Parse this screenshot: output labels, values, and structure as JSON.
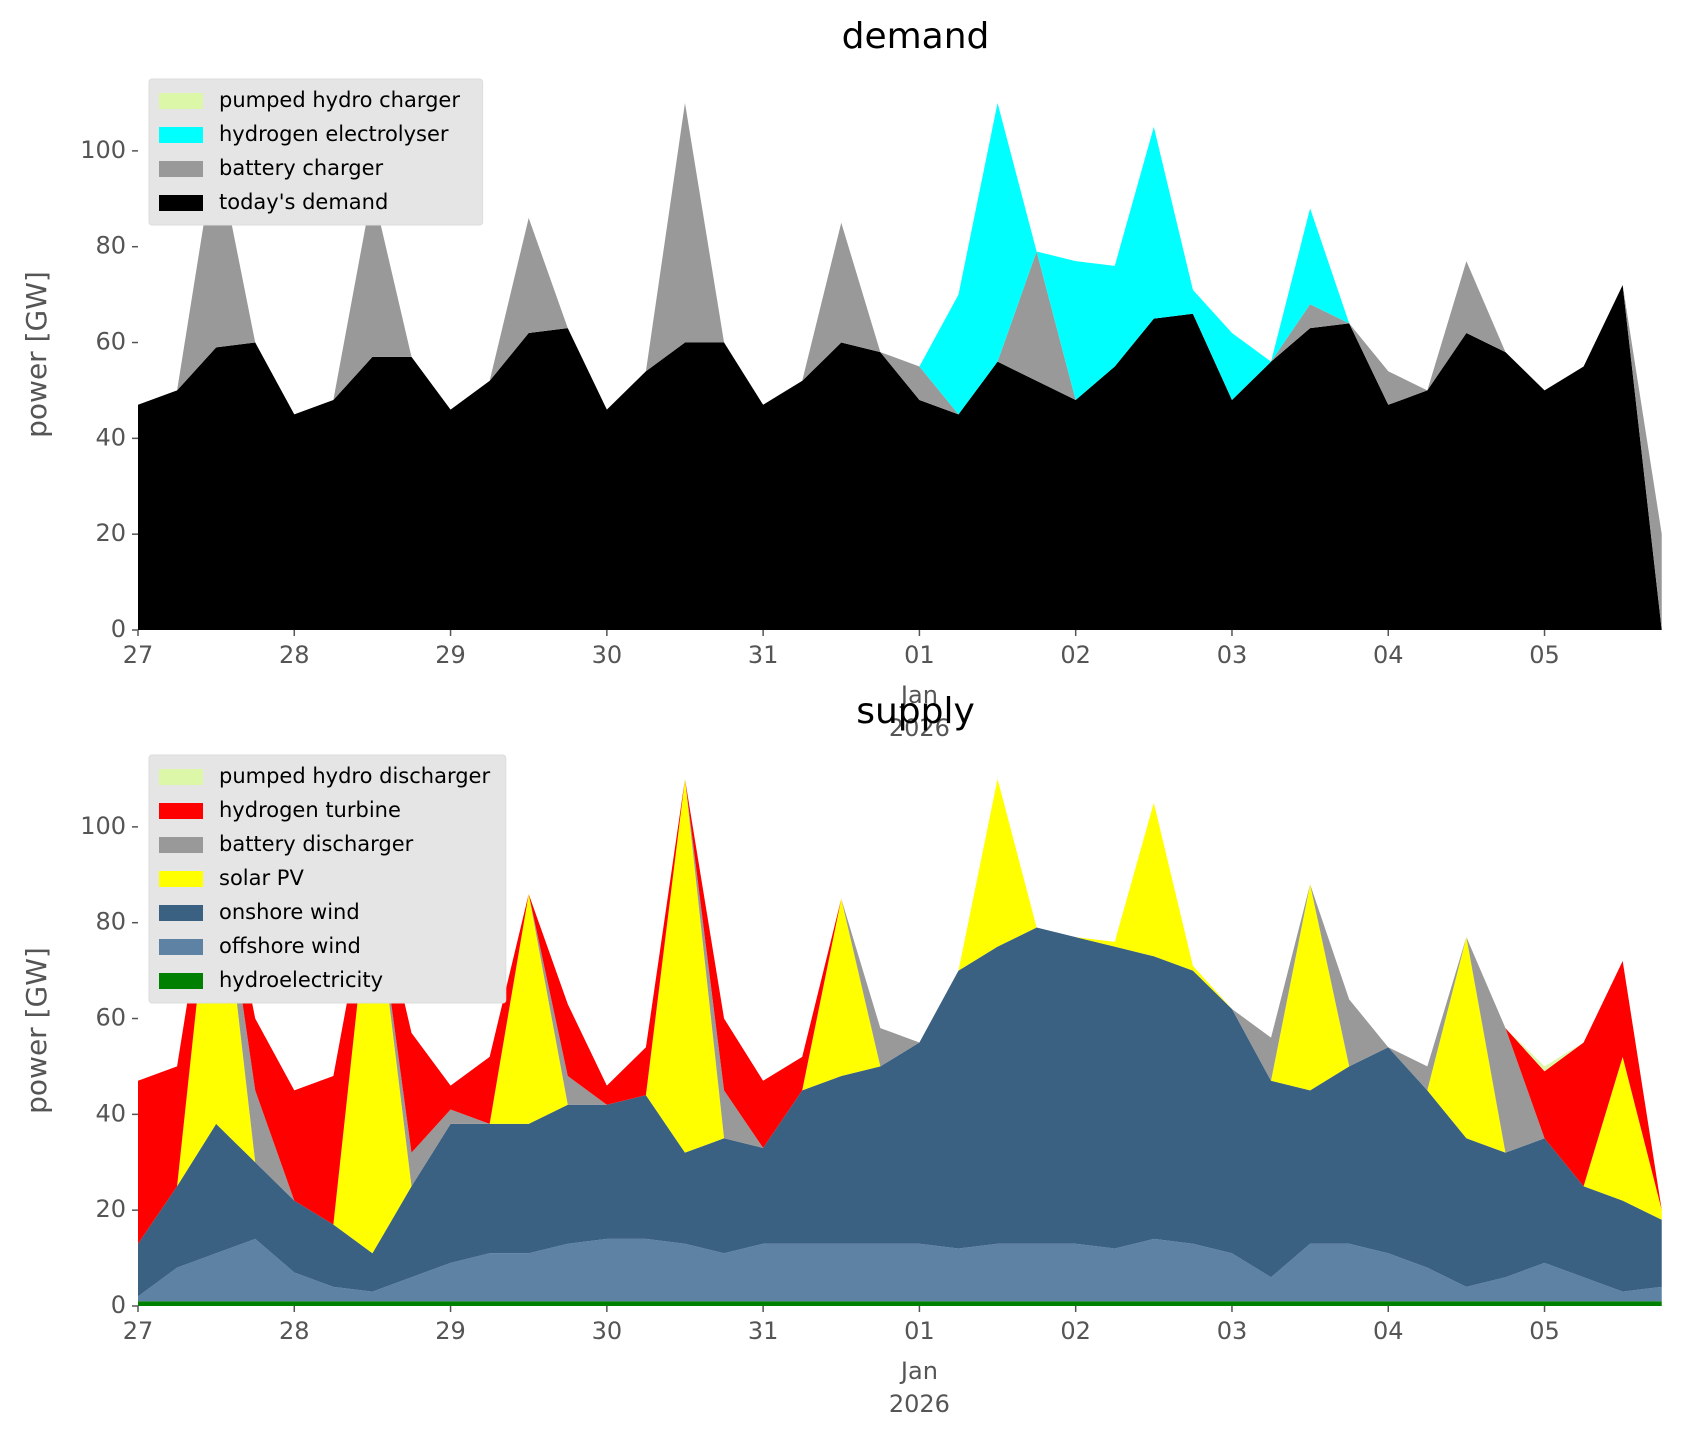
{
  "chart_data": [
    {
      "type": "stacked_area",
      "title": "demand",
      "ylabel": "power [GW]",
      "xlabel_lines": [
        "Jan",
        "2026"
      ],
      "xlim": [
        0,
        9.95
      ],
      "ylim": [
        0,
        115
      ],
      "yticks": [
        0,
        20,
        40,
        60,
        80,
        100
      ],
      "xticks": [
        {
          "value": 0,
          "label": "27"
        },
        {
          "value": 1,
          "label": "28"
        },
        {
          "value": 2,
          "label": "29"
        },
        {
          "value": 3,
          "label": "30"
        },
        {
          "value": 4,
          "label": "31"
        },
        {
          "value": 5,
          "label": "01"
        },
        {
          "value": 6,
          "label": "02"
        },
        {
          "value": 7,
          "label": "03"
        },
        {
          "value": 8,
          "label": "04"
        },
        {
          "value": 9,
          "label": "05"
        }
      ],
      "legend": "upper left",
      "x": [
        0,
        0.25,
        0.5,
        0.75,
        1,
        1.25,
        1.5,
        1.75,
        2,
        2.25,
        2.5,
        2.75,
        3,
        3.25,
        3.5,
        3.75,
        4,
        4.25,
        4.5,
        4.75,
        5,
        5.25,
        5.5,
        5.75,
        6,
        6.25,
        6.5,
        6.75,
        7,
        7.25,
        7.5,
        7.75,
        8,
        8.25,
        8.5,
        8.75,
        9,
        9.25,
        9.5,
        9.75
      ],
      "series": [
        {
          "name": "today's demand",
          "color": "#000000",
          "values": [
            47,
            50,
            59,
            60,
            45,
            48,
            57,
            57,
            46,
            52,
            62,
            63,
            46,
            54,
            60,
            60,
            47,
            52,
            60,
            58,
            48,
            45,
            56,
            52,
            48,
            55,
            65,
            66,
            48,
            56,
            63,
            64,
            47,
            50,
            62,
            58,
            50,
            55,
            72,
            0
          ]
        },
        {
          "name": "battery charger",
          "color": "#999999",
          "values": [
            0,
            0,
            42,
            0,
            0,
            0,
            35,
            0,
            0,
            0,
            24,
            0,
            0,
            0,
            50,
            0,
            0,
            0,
            25,
            0,
            7,
            0,
            0,
            27,
            0,
            0,
            0,
            0,
            0,
            0,
            5,
            0,
            7,
            0,
            15,
            0,
            0,
            0,
            0,
            20
          ]
        },
        {
          "name": "hydrogen electrolyser",
          "color": "#00ffff",
          "values": [
            0,
            0,
            0,
            0,
            0,
            0,
            0,
            0,
            0,
            0,
            0,
            0,
            0,
            0,
            0,
            0,
            0,
            0,
            0,
            0,
            0,
            25,
            54,
            0,
            29,
            21,
            40,
            5,
            14,
            0,
            20,
            0,
            0,
            0,
            0,
            0,
            0,
            0,
            0,
            0
          ]
        },
        {
          "name": "pumped hydro charger",
          "color": "#dcf7a8",
          "values": [
            0,
            0,
            0,
            0,
            0,
            0,
            0,
            0,
            0,
            0,
            0,
            0,
            0,
            0,
            0,
            0,
            0,
            0,
            0,
            0,
            0,
            0,
            0,
            0,
            0,
            0,
            0,
            0,
            0,
            0,
            0,
            0,
            0,
            0,
            0,
            0,
            0,
            0,
            0,
            0
          ]
        }
      ]
    },
    {
      "type": "stacked_area",
      "title": "supply",
      "ylabel": "power [GW]",
      "xlabel_lines": [
        "Jan",
        "2026"
      ],
      "xlim": [
        0,
        9.95
      ],
      "ylim": [
        0,
        115
      ],
      "yticks": [
        0,
        20,
        40,
        60,
        80,
        100
      ],
      "xticks": [
        {
          "value": 0,
          "label": "27"
        },
        {
          "value": 1,
          "label": "28"
        },
        {
          "value": 2,
          "label": "29"
        },
        {
          "value": 3,
          "label": "30"
        },
        {
          "value": 4,
          "label": "31"
        },
        {
          "value": 5,
          "label": "01"
        },
        {
          "value": 6,
          "label": "02"
        },
        {
          "value": 7,
          "label": "03"
        },
        {
          "value": 8,
          "label": "04"
        },
        {
          "value": 9,
          "label": "05"
        }
      ],
      "legend": "upper left",
      "x": [
        0,
        0.25,
        0.5,
        0.75,
        1,
        1.25,
        1.5,
        1.75,
        2,
        2.25,
        2.5,
        2.75,
        3,
        3.25,
        3.5,
        3.75,
        4,
        4.25,
        4.5,
        4.75,
        5,
        5.25,
        5.5,
        5.75,
        6,
        6.25,
        6.5,
        6.75,
        7,
        7.25,
        7.5,
        7.75,
        8,
        8.25,
        8.5,
        8.75,
        9,
        9.25,
        9.5,
        9.75
      ],
      "series": [
        {
          "name": "hydroelectricity",
          "color": "#008000",
          "values": [
            1,
            1,
            1,
            1,
            1,
            1,
            1,
            1,
            1,
            1,
            1,
            1,
            1,
            1,
            1,
            1,
            1,
            1,
            1,
            1,
            1,
            1,
            1,
            1,
            1,
            1,
            1,
            1,
            1,
            1,
            1,
            1,
            1,
            1,
            1,
            1,
            1,
            1,
            1,
            1
          ]
        },
        {
          "name": "offshore wind",
          "color": "#5d82a4",
          "values": [
            1,
            7,
            10,
            13,
            6,
            3,
            2,
            5,
            8,
            10,
            10,
            12,
            13,
            13,
            12,
            10,
            12,
            12,
            12,
            12,
            12,
            11,
            12,
            12,
            12,
            11,
            13,
            12,
            10,
            5,
            12,
            12,
            10,
            7,
            3,
            5,
            8,
            5,
            2,
            3
          ]
        },
        {
          "name": "onshore wind",
          "color": "#3b6182",
          "values": [
            11,
            17,
            27,
            16,
            15,
            13,
            8,
            19,
            29,
            27,
            27,
            29,
            28,
            30,
            19,
            24,
            20,
            32,
            35,
            37,
            42,
            58,
            62,
            66,
            64,
            63,
            59,
            57,
            51,
            41,
            32,
            37,
            43,
            37,
            31,
            26,
            26,
            19,
            19,
            14
          ]
        },
        {
          "name": "solar PV",
          "color": "#ffff00",
          "values": [
            0,
            0,
            63,
            0,
            0,
            0,
            81,
            0,
            0,
            0,
            48,
            0,
            0,
            0,
            78,
            0,
            0,
            0,
            37,
            0,
            0,
            0,
            35,
            0,
            0,
            1,
            32,
            1,
            0,
            0,
            43,
            0,
            0,
            0,
            42,
            0,
            0,
            0,
            30,
            2
          ]
        },
        {
          "name": "battery discharger",
          "color": "#999999",
          "values": [
            0,
            0,
            0,
            15,
            0,
            0,
            0,
            7,
            3,
            0,
            0,
            6,
            0,
            0,
            0,
            10,
            0,
            0,
            0,
            8,
            0,
            0,
            0,
            0,
            0,
            0,
            0,
            0,
            0,
            9,
            0,
            14,
            0,
            5,
            0,
            26,
            0,
            0,
            0,
            0
          ]
        },
        {
          "name": "hydrogen turbine",
          "color": "#ff0000",
          "values": [
            34,
            25,
            0,
            15,
            23,
            31,
            0,
            25,
            5,
            14,
            0,
            15,
            4,
            10,
            0,
            15,
            14,
            7,
            0,
            0,
            0,
            0,
            0,
            0,
            0,
            0,
            0,
            0,
            0,
            0,
            0,
            0,
            0,
            0,
            0,
            0,
            14,
            30,
            20,
            0
          ]
        },
        {
          "name": "pumped hydro discharger",
          "color": "#dcf7a8",
          "values": [
            0,
            0,
            0,
            0,
            0,
            0,
            0,
            0,
            0,
            0,
            0,
            0,
            0,
            0,
            0,
            0,
            0,
            0,
            0,
            0,
            0,
            0,
            0,
            0,
            0,
            0,
            0,
            0,
            0,
            0,
            0,
            0,
            0,
            0,
            0,
            0,
            1,
            0,
            0,
            0
          ]
        }
      ]
    }
  ]
}
